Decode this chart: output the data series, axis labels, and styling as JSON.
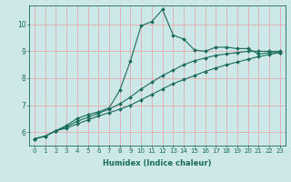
{
  "title": "",
  "xlabel": "Humidex (Indice chaleur)",
  "bg_color": "#cce8e8",
  "line_color": "#1a6b5a",
  "grid_color": "#e8a0a0",
  "xlim": [
    -0.5,
    23.5
  ],
  "ylim": [
    5.5,
    10.7
  ],
  "xticks": [
    0,
    1,
    2,
    3,
    4,
    5,
    6,
    7,
    8,
    9,
    10,
    11,
    12,
    13,
    14,
    15,
    16,
    17,
    18,
    19,
    20,
    21,
    22,
    23
  ],
  "yticks": [
    6,
    7,
    8,
    9,
    10
  ],
  "line1_x": [
    0,
    1,
    2,
    3,
    4,
    5,
    6,
    7,
    8,
    9,
    10,
    11,
    12,
    13,
    14,
    15,
    16,
    17,
    18,
    19,
    20,
    21,
    22,
    23
  ],
  "line1_y": [
    5.75,
    5.85,
    6.05,
    6.25,
    6.5,
    6.65,
    6.75,
    6.9,
    7.55,
    8.65,
    9.95,
    10.1,
    10.55,
    9.6,
    9.45,
    9.05,
    9.0,
    9.15,
    9.15,
    9.1,
    9.1,
    8.9,
    8.95,
    8.95
  ],
  "line2_x": [
    0,
    1,
    2,
    3,
    4,
    5,
    6,
    7,
    8,
    9,
    10,
    11,
    12,
    13,
    14,
    15,
    16,
    17,
    18,
    19,
    20,
    21,
    22,
    23
  ],
  "line2_y": [
    5.75,
    5.85,
    6.05,
    6.2,
    6.4,
    6.55,
    6.7,
    6.85,
    7.05,
    7.3,
    7.6,
    7.85,
    8.1,
    8.3,
    8.5,
    8.65,
    8.75,
    8.85,
    8.9,
    8.95,
    9.0,
    9.0,
    9.0,
    9.0
  ],
  "line3_x": [
    0,
    1,
    2,
    3,
    4,
    5,
    6,
    7,
    8,
    9,
    10,
    11,
    12,
    13,
    14,
    15,
    16,
    17,
    18,
    19,
    20,
    21,
    22,
    23
  ],
  "line3_y": [
    5.75,
    5.85,
    6.05,
    6.15,
    6.3,
    6.45,
    6.6,
    6.72,
    6.85,
    7.0,
    7.2,
    7.4,
    7.6,
    7.8,
    7.95,
    8.1,
    8.25,
    8.38,
    8.5,
    8.6,
    8.7,
    8.8,
    8.88,
    8.95
  ],
  "xlabel_fontsize": 6.0,
  "tick_fontsize": 5.0,
  "marker_size": 2.0,
  "line_width": 0.8
}
